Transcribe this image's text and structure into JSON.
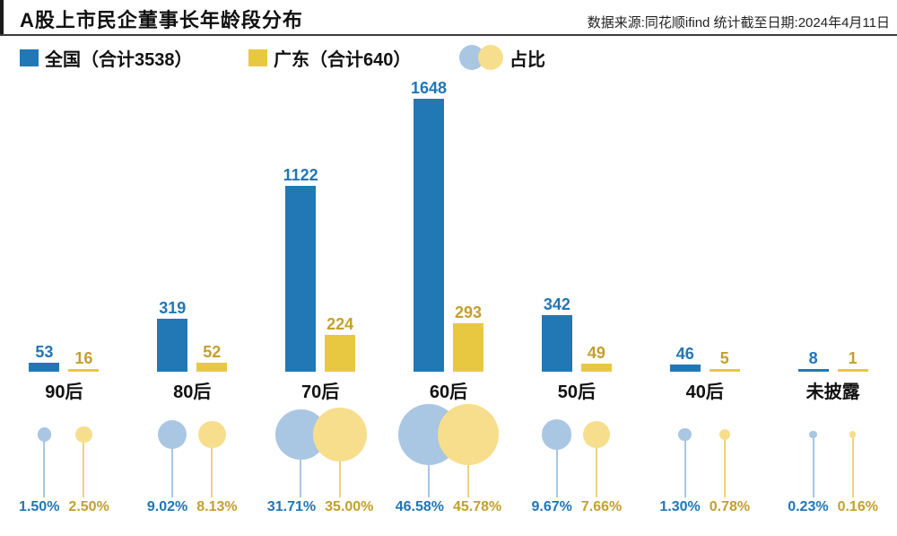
{
  "header": {
    "title": "A股上市民企董事长年龄段分布",
    "source": "数据来源:同花顺ifind  统计截至日期:2024年4月11日"
  },
  "legend": {
    "national_label": "全国（合计3538）",
    "guangdong_label": "广东（合计640）",
    "share_label": "占比"
  },
  "colors": {
    "national_bar": "#2278b5",
    "guangdong_bar": "#e8c840",
    "national_text": "#2176b5",
    "guangdong_text": "#c49f2e",
    "bubble_blue": "#a9c6e2",
    "bubble_yellow": "#f7de8d",
    "stem_blue": "#a9c6e2",
    "stem_yellow": "#edd27f"
  },
  "chart_data": {
    "type": "bar",
    "title": "A股上市民企董事长年龄段分布",
    "categories": [
      "90后",
      "80后",
      "70后",
      "60后",
      "50后",
      "40后",
      "未披露"
    ],
    "series": [
      {
        "name": "全国（合计3538）",
        "total": 3538,
        "values": [
          53,
          319,
          1122,
          1648,
          342,
          46,
          8
        ]
      },
      {
        "name": "广东（合计640）",
        "total": 640,
        "values": [
          16,
          52,
          224,
          293,
          49,
          5,
          1
        ]
      }
    ],
    "share_series": [
      {
        "name": "全国占比",
        "values": [
          "1.50%",
          "9.02%",
          "31.71%",
          "46.58%",
          "9.67%",
          "1.30%",
          "0.23%"
        ]
      },
      {
        "name": "广东占比",
        "values": [
          "2.50%",
          "8.13%",
          "35.00%",
          "45.78%",
          "7.66%",
          "0.78%",
          "0.16%"
        ]
      }
    ],
    "ylim": [
      0,
      1648
    ],
    "grid": false,
    "legend_position": "top-left",
    "bubble_size_rule": "radius ~ sqrt(percent)"
  }
}
